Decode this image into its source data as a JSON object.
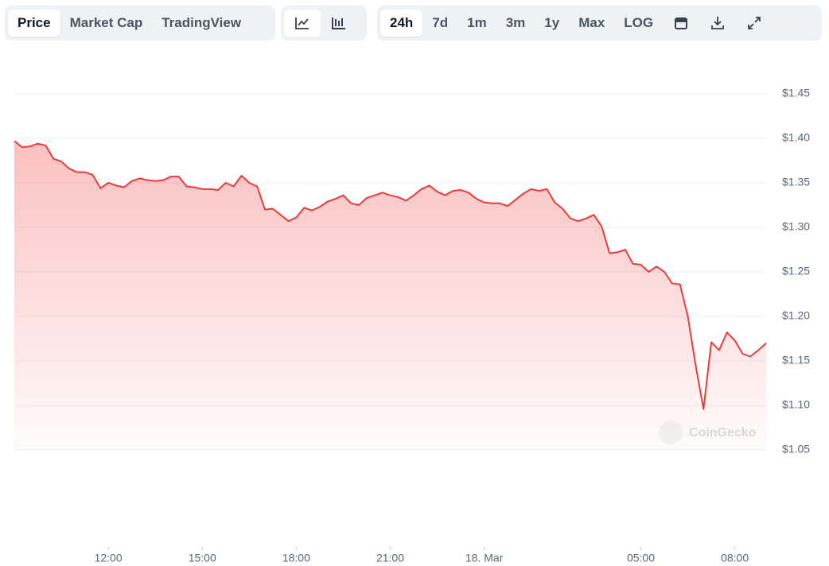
{
  "toolbar": {
    "tabs": [
      "Price",
      "Market Cap",
      "TradingView"
    ],
    "ranges": [
      "24h",
      "7d",
      "1m",
      "3m",
      "1y",
      "Max",
      "LOG"
    ]
  },
  "chart_data": {
    "type": "line",
    "watermark": "CoinGecko",
    "x": [
      9,
      9.25,
      9.5,
      9.75,
      10,
      10.25,
      10.5,
      10.75,
      11,
      11.25,
      11.5,
      11.75,
      12,
      12.25,
      12.5,
      12.75,
      13,
      13.25,
      13.5,
      13.75,
      14,
      14.25,
      14.5,
      14.75,
      15,
      15.25,
      15.5,
      15.75,
      16,
      16.25,
      16.5,
      16.75,
      17,
      17.25,
      17.5,
      17.75,
      18,
      18.25,
      18.5,
      18.75,
      19,
      19.25,
      19.5,
      19.75,
      20,
      20.25,
      20.5,
      20.75,
      21,
      21.25,
      21.5,
      21.75,
      22,
      22.25,
      22.5,
      22.75,
      23,
      23.25,
      23.5,
      23.75,
      24,
      24.25,
      24.5,
      24.75,
      25,
      25.25,
      25.5,
      25.75,
      26,
      26.25,
      26.5,
      26.75,
      27,
      27.25,
      27.5,
      27.75,
      28,
      28.25,
      28.5,
      28.75,
      29,
      29.25,
      29.5,
      29.75,
      30,
      30.25,
      30.5,
      30.75,
      31,
      31.25,
      31.5,
      31.75,
      32,
      32.25,
      32.5,
      32.75,
      33
    ],
    "series": [
      {
        "name": "Price",
        "color": "#f03a3a",
        "values": [
          1.397,
          1.39,
          1.391,
          1.394,
          1.392,
          1.377,
          1.374,
          1.366,
          1.362,
          1.362,
          1.359,
          1.344,
          1.35,
          1.347,
          1.345,
          1.352,
          1.355,
          1.353,
          1.352,
          1.353,
          1.357,
          1.357,
          1.346,
          1.345,
          1.343,
          1.343,
          1.342,
          1.35,
          1.346,
          1.358,
          1.35,
          1.346,
          1.32,
          1.321,
          1.314,
          1.307,
          1.311,
          1.322,
          1.319,
          1.323,
          1.329,
          1.332,
          1.336,
          1.327,
          1.325,
          1.333,
          1.336,
          1.339,
          1.336,
          1.334,
          1.33,
          1.336,
          1.343,
          1.347,
          1.34,
          1.336,
          1.341,
          1.342,
          1.339,
          1.332,
          1.328,
          1.327,
          1.327,
          1.324,
          1.331,
          1.338,
          1.343,
          1.341,
          1.343,
          1.328,
          1.321,
          1.31,
          1.307,
          1.31,
          1.314,
          1.301,
          1.271,
          1.272,
          1.275,
          1.259,
          1.258,
          1.25,
          1.256,
          1.25,
          1.237,
          1.236,
          1.2,
          1.145,
          1.096,
          1.171,
          1.162,
          1.182,
          1.173,
          1.158,
          1.155,
          1.162,
          1.17
        ]
      }
    ],
    "xlim": [
      9,
      33
    ],
    "xticks": [
      {
        "value": 12,
        "label": "12:00"
      },
      {
        "value": 15,
        "label": "15:00"
      },
      {
        "value": 18,
        "label": "18:00"
      },
      {
        "value": 21,
        "label": "21:00"
      },
      {
        "value": 24,
        "label": "18. Mar"
      },
      {
        "value": 29,
        "label": "05:00"
      },
      {
        "value": 32,
        "label": "08:00"
      }
    ],
    "ylim": [
      1.05,
      1.45
    ],
    "yticks": [
      {
        "value": 1.05,
        "label": "$1.05"
      },
      {
        "value": 1.1,
        "label": "$1.10"
      },
      {
        "value": 1.15,
        "label": "$1.15"
      },
      {
        "value": 1.2,
        "label": "$1.20"
      },
      {
        "value": 1.25,
        "label": "$1.25"
      },
      {
        "value": 1.3,
        "label": "$1.30"
      },
      {
        "value": 1.35,
        "label": "$1.35"
      },
      {
        "value": 1.4,
        "label": "$1.40"
      },
      {
        "value": 1.45,
        "label": "$1.45"
      }
    ],
    "grid": true
  }
}
